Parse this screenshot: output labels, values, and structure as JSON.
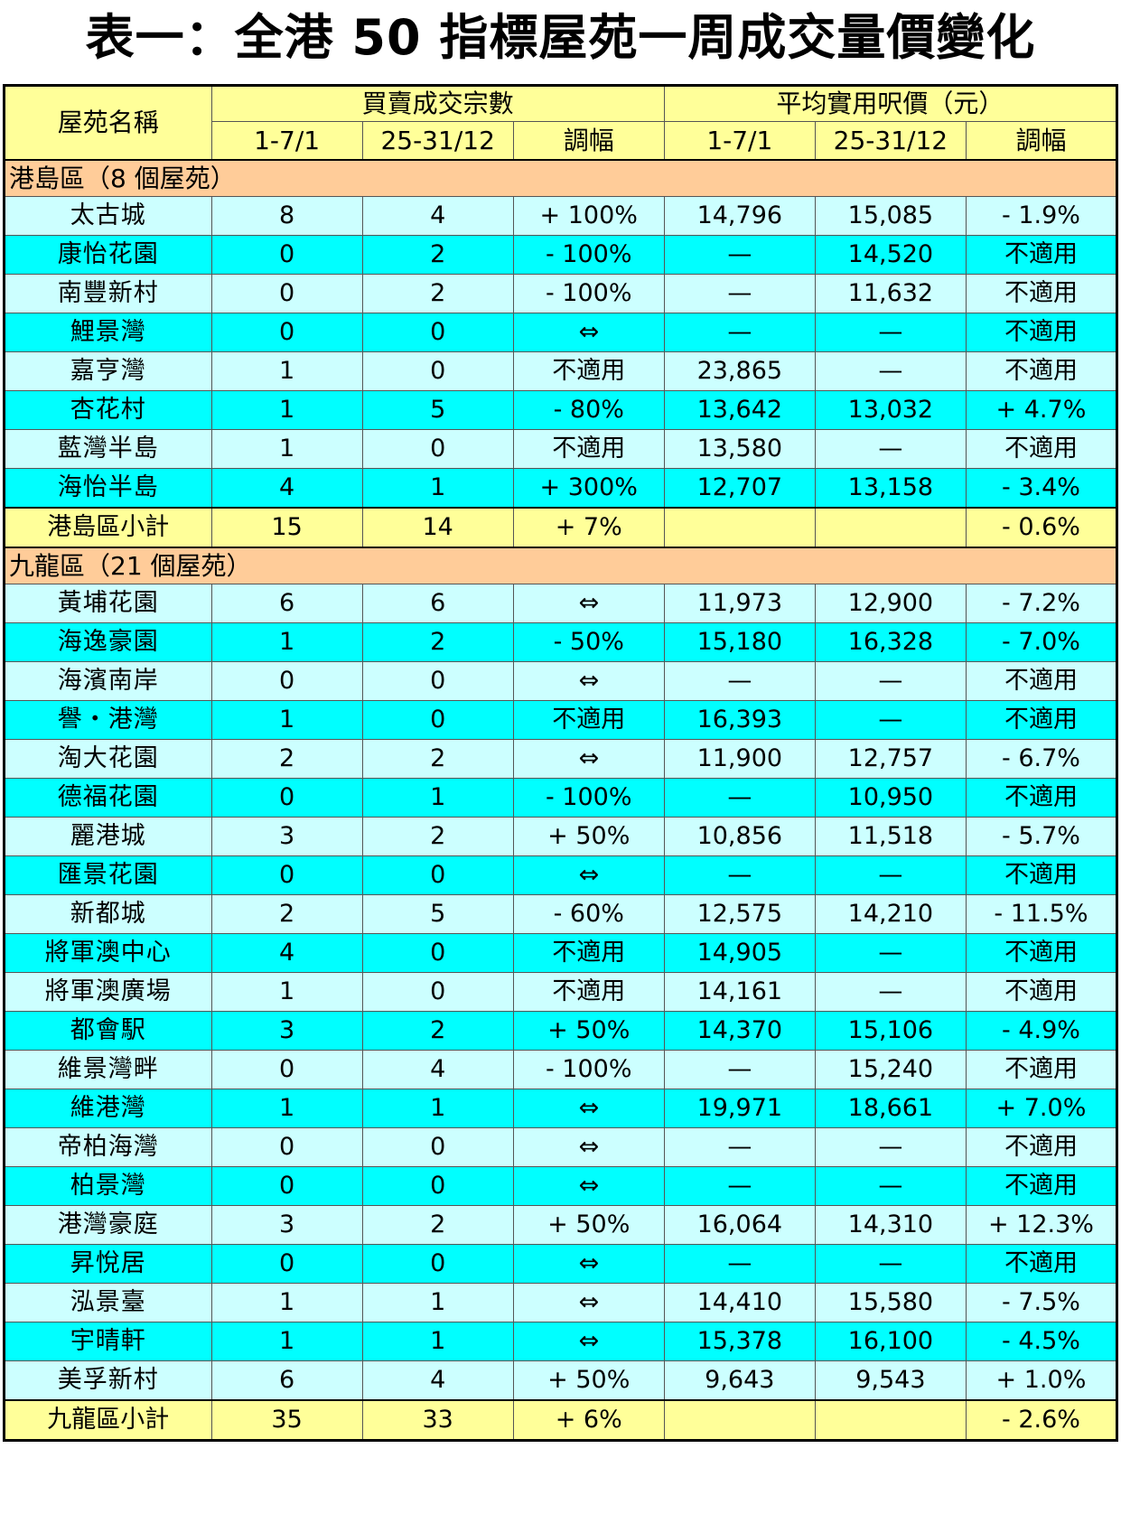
{
  "title": "表一：全港 50 指標屋苑一周成交量價變化",
  "header": {
    "estate_label": "屋苑名稱",
    "group_volume": "買賣成交宗數",
    "group_price": "平均實用呎價（元）",
    "sub_cols": [
      "1-7/1",
      "25-31/12",
      "調幅",
      "1-7/1",
      "25-31/12",
      "調幅"
    ]
  },
  "sections": [
    {
      "region": "港島區（8 個屋苑）",
      "rows": [
        [
          "太古城",
          "8",
          "4",
          "+ 100%",
          "14,796",
          "15,085",
          "- 1.9%"
        ],
        [
          "康怡花園",
          "0",
          "2",
          "- 100%",
          "—",
          "14,520",
          "不適用"
        ],
        [
          "南豐新村",
          "0",
          "2",
          "- 100%",
          "—",
          "11,632",
          "不適用"
        ],
        [
          "鯉景灣",
          "0",
          "0",
          "⇔",
          "—",
          "—",
          "不適用"
        ],
        [
          "嘉亨灣",
          "1",
          "0",
          "不適用",
          "23,865",
          "—",
          "不適用"
        ],
        [
          "杏花村",
          "1",
          "5",
          "- 80%",
          "13,642",
          "13,032",
          "+ 4.7%"
        ],
        [
          "藍灣半島",
          "1",
          "0",
          "不適用",
          "13,580",
          "—",
          "不適用"
        ],
        [
          "海怡半島",
          "4",
          "1",
          "+ 300%",
          "12,707",
          "13,158",
          "- 3.4%"
        ]
      ],
      "subtotal": [
        "港島區小計",
        "15",
        "14",
        "+ 7%",
        "",
        "",
        "- 0.6%"
      ]
    },
    {
      "region": "九龍區（21 個屋苑）",
      "rows": [
        [
          "黃埔花園",
          "6",
          "6",
          "⇔",
          "11,973",
          "12,900",
          "- 7.2%"
        ],
        [
          "海逸豪園",
          "1",
          "2",
          "- 50%",
          "15,180",
          "16,328",
          "- 7.0%"
        ],
        [
          "海濱南岸",
          "0",
          "0",
          "⇔",
          "—",
          "—",
          "不適用"
        ],
        [
          "譽・港灣",
          "1",
          "0",
          "不適用",
          "16,393",
          "—",
          "不適用"
        ],
        [
          "淘大花園",
          "2",
          "2",
          "⇔",
          "11,900",
          "12,757",
          "- 6.7%"
        ],
        [
          "德福花園",
          "0",
          "1",
          "- 100%",
          "—",
          "10,950",
          "不適用"
        ],
        [
          "麗港城",
          "3",
          "2",
          "+ 50%",
          "10,856",
          "11,518",
          "- 5.7%"
        ],
        [
          "匯景花園",
          "0",
          "0",
          "⇔",
          "—",
          "—",
          "不適用"
        ],
        [
          "新都城",
          "2",
          "5",
          "- 60%",
          "12,575",
          "14,210",
          "- 11.5%"
        ],
        [
          "將軍澳中心",
          "4",
          "0",
          "不適用",
          "14,905",
          "—",
          "不適用"
        ],
        [
          "將軍澳廣場",
          "1",
          "0",
          "不適用",
          "14,161",
          "—",
          "不適用"
        ],
        [
          "都會駅",
          "3",
          "2",
          "+ 50%",
          "14,370",
          "15,106",
          "- 4.9%"
        ],
        [
          "維景灣畔",
          "0",
          "4",
          "- 100%",
          "—",
          "15,240",
          "不適用"
        ],
        [
          "維港灣",
          "1",
          "1",
          "⇔",
          "19,971",
          "18,661",
          "+ 7.0%"
        ],
        [
          "帝柏海灣",
          "0",
          "0",
          "⇔",
          "—",
          "—",
          "不適用"
        ],
        [
          "柏景灣",
          "0",
          "0",
          "⇔",
          "—",
          "—",
          "不適用"
        ],
        [
          "港灣豪庭",
          "3",
          "2",
          "+ 50%",
          "16,064",
          "14,310",
          "+ 12.3%"
        ],
        [
          "昇悅居",
          "0",
          "0",
          "⇔",
          "—",
          "—",
          "不適用"
        ],
        [
          "泓景臺",
          "1",
          "1",
          "⇔",
          "14,410",
          "15,580",
          "- 7.5%"
        ],
        [
          "宇晴軒",
          "1",
          "1",
          "⇔",
          "15,378",
          "16,100",
          "- 4.5%"
        ],
        [
          "美孚新村",
          "6",
          "4",
          "+ 50%",
          "9,643",
          "9,543",
          "+ 1.0%"
        ]
      ],
      "subtotal": [
        "九龍區小計",
        "35",
        "33",
        "+ 6%",
        "",
        "",
        "- 2.6%"
      ]
    }
  ]
}
